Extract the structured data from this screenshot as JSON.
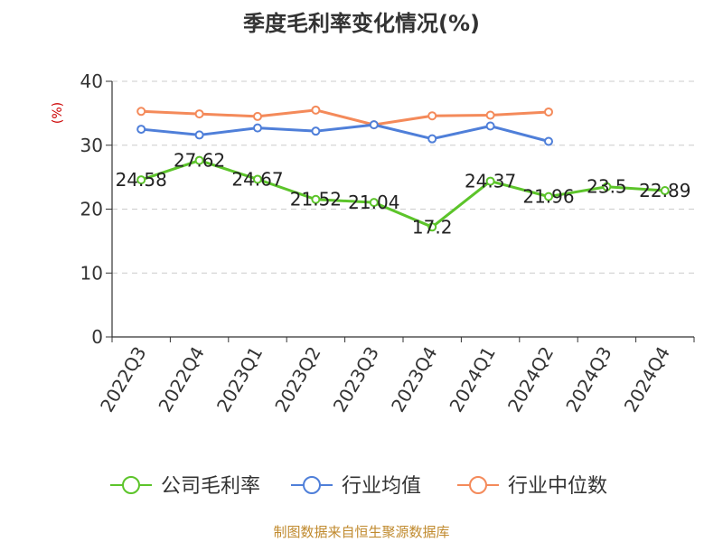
{
  "chart_data": {
    "type": "line",
    "title": "季度毛利率变化情况(%)",
    "ylabel": "(%)",
    "ylim": [
      0,
      40
    ],
    "yticks": [
      0,
      10,
      20,
      30,
      40
    ],
    "categories": [
      "2022Q3",
      "2022Q4",
      "2023Q1",
      "2023Q2",
      "2023Q3",
      "2023Q4",
      "2024Q1",
      "2024Q2",
      "2024Q3",
      "2024Q4"
    ],
    "grid": true,
    "legend_position": "bottom",
    "series": [
      {
        "name": "公司毛利率",
        "color": "#5cc42a",
        "values": [
          24.58,
          27.62,
          24.67,
          21.52,
          21.04,
          17.2,
          24.37,
          21.96,
          23.5,
          22.89
        ],
        "labels": [
          "24.58",
          "27.62",
          "24.67",
          "21.52",
          "21.04",
          "17.2",
          "24.37",
          "21.96",
          "23.5",
          "22.89"
        ]
      },
      {
        "name": "行业均值",
        "color": "#4f7fd9",
        "values": [
          32.5,
          31.6,
          32.7,
          32.2,
          33.2,
          31.0,
          33.0,
          30.6,
          null,
          null
        ]
      },
      {
        "name": "行业中位数",
        "color": "#f48a5a",
        "values": [
          35.3,
          34.9,
          34.5,
          35.5,
          33.2,
          34.6,
          34.7,
          35.2,
          null,
          null
        ]
      }
    ],
    "source": "制图数据来自恒生聚源数据库"
  }
}
